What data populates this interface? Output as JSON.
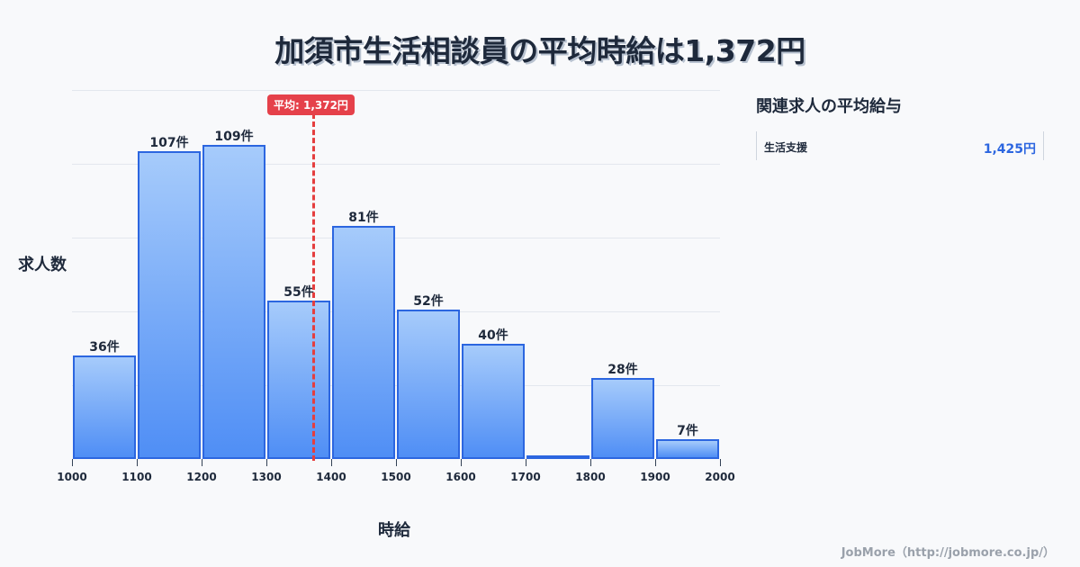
{
  "title": "加須市生活相談員の平均時給は1,372円",
  "chart_data": {
    "type": "bar",
    "title": "加須市生活相談員の平均時給は1,372円",
    "xlabel": "時給",
    "ylabel": "求人数",
    "categories": [
      "1000-1100",
      "1100-1200",
      "1200-1300",
      "1300-1400",
      "1400-1500",
      "1500-1600",
      "1600-1700",
      "1700-1800",
      "1800-1900",
      "1900-2000"
    ],
    "bin_edges": [
      1000,
      1100,
      1200,
      1300,
      1400,
      1500,
      1600,
      1700,
      1800,
      1900,
      2000
    ],
    "values": [
      36,
      107,
      109,
      55,
      81,
      52,
      40,
      1,
      28,
      7
    ],
    "labels": [
      "36件",
      "107件",
      "109件",
      "55件",
      "81件",
      "52件",
      "40件",
      "",
      "28件",
      "7件"
    ],
    "x_ticks": [
      "1000",
      "1100",
      "1200",
      "1300",
      "1400",
      "1500",
      "1600",
      "1700",
      "1800",
      "1900",
      "2000"
    ],
    "xlim": [
      1000,
      2000
    ],
    "ylim": [
      0,
      128
    ],
    "grid": true,
    "average": {
      "value": 1372,
      "label": "平均: 1,372円"
    },
    "colors": {
      "bar_fill_top": "#a6cbfb",
      "bar_fill_bottom": "#4f8ef5",
      "bar_border": "#2c66e0",
      "average_line": "#e53e3e"
    }
  },
  "sidebar": {
    "title": "関連求人の平均給与",
    "items": [
      {
        "name": "生活支援",
        "value": "1,425円"
      }
    ]
  },
  "footer": "JobMore（http://jobmore.co.jp/）"
}
